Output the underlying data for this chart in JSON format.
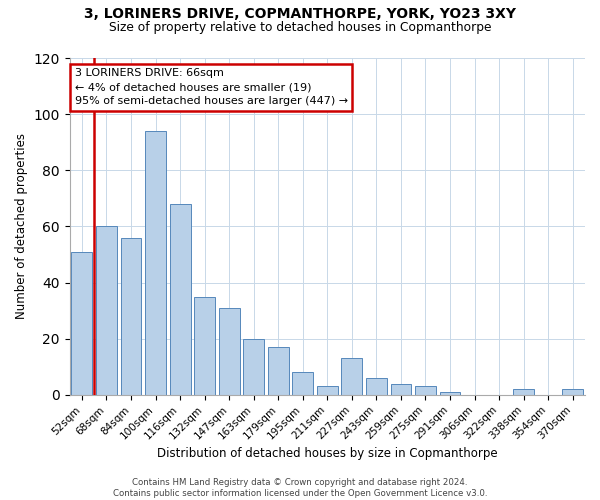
{
  "title": "3, LORINERS DRIVE, COPMANTHORPE, YORK, YO23 3XY",
  "subtitle": "Size of property relative to detached houses in Copmanthorpe",
  "xlabel": "Distribution of detached houses by size in Copmanthorpe",
  "ylabel": "Number of detached properties",
  "categories": [
    "52sqm",
    "68sqm",
    "84sqm",
    "100sqm",
    "116sqm",
    "132sqm",
    "147sqm",
    "163sqm",
    "179sqm",
    "195sqm",
    "211sqm",
    "227sqm",
    "243sqm",
    "259sqm",
    "275sqm",
    "291sqm",
    "306sqm",
    "322sqm",
    "338sqm",
    "354sqm",
    "370sqm"
  ],
  "values": [
    51,
    60,
    56,
    94,
    68,
    35,
    31,
    20,
    17,
    8,
    3,
    13,
    6,
    4,
    3,
    1,
    0,
    0,
    2,
    0,
    2
  ],
  "bar_color": "#b8d0e8",
  "bar_edge_color": "#5588bb",
  "marker_color": "#cc0000",
  "ylim": [
    0,
    120
  ],
  "yticks": [
    0,
    20,
    40,
    60,
    80,
    100,
    120
  ],
  "annotation_title": "3 LORINERS DRIVE: 66sqm",
  "annotation_line1": "← 4% of detached houses are smaller (19)",
  "annotation_line2": "95% of semi-detached houses are larger (447) →",
  "annotation_box_color": "#ffffff",
  "annotation_box_edge": "#cc0000",
  "footer1": "Contains HM Land Registry data © Crown copyright and database right 2024.",
  "footer2": "Contains public sector information licensed under the Open Government Licence v3.0.",
  "background_color": "#ffffff",
  "grid_color": "#c8d8e8"
}
